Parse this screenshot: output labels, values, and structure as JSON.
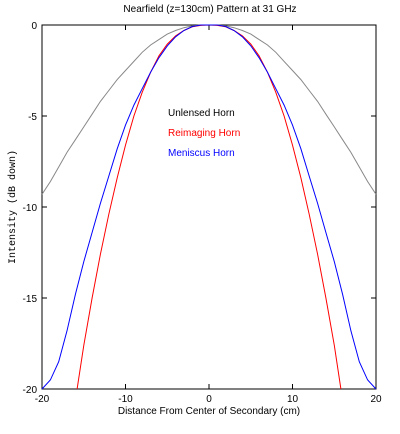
{
  "chart_data": {
    "type": "line",
    "title": "Nearfield (z=130cm) Pattern at 31 GHz",
    "xlabel": "Distance From Center of Secondary (cm)",
    "ylabel": "Intensity (dB down)",
    "xlim": [
      -20,
      20
    ],
    "ylim": [
      -20,
      0
    ],
    "x_ticks": [
      -20,
      -10,
      0,
      10,
      20
    ],
    "y_ticks": [
      0,
      -5,
      -10,
      -15,
      -20
    ],
    "grid": false,
    "legend_position": "center",
    "series": [
      {
        "name": "Unlensed Horn",
        "color": "#888888",
        "points": [
          [
            -20,
            -9.3
          ],
          [
            -19,
            -8.6
          ],
          [
            -18,
            -7.8
          ],
          [
            -17,
            -7.0
          ],
          [
            -16,
            -6.3
          ],
          [
            -15,
            -5.6
          ],
          [
            -14,
            -4.9
          ],
          [
            -13,
            -4.2
          ],
          [
            -12,
            -3.6
          ],
          [
            -11,
            -3.0
          ],
          [
            -10,
            -2.5
          ],
          [
            -9,
            -2.0
          ],
          [
            -8,
            -1.5
          ],
          [
            -7,
            -1.1
          ],
          [
            -6,
            -0.8
          ],
          [
            -5,
            -0.5
          ],
          [
            -4,
            -0.3
          ],
          [
            -3,
            -0.15
          ],
          [
            -2,
            -0.05
          ],
          [
            -1,
            0.0
          ],
          [
            0,
            0.0
          ],
          [
            1,
            0.0
          ],
          [
            2,
            -0.05
          ],
          [
            3,
            -0.15
          ],
          [
            4,
            -0.3
          ],
          [
            5,
            -0.5
          ],
          [
            6,
            -0.8
          ],
          [
            7,
            -1.1
          ],
          [
            8,
            -1.5
          ],
          [
            9,
            -2.0
          ],
          [
            10,
            -2.5
          ],
          [
            11,
            -3.0
          ],
          [
            12,
            -3.6
          ],
          [
            13,
            -4.2
          ],
          [
            14,
            -4.9
          ],
          [
            15,
            -5.6
          ],
          [
            16,
            -6.3
          ],
          [
            17,
            -7.0
          ],
          [
            18,
            -7.8
          ],
          [
            19,
            -8.6
          ],
          [
            20,
            -9.3
          ]
        ]
      },
      {
        "name": "Reimaging Horn",
        "color": "#ff0000",
        "points": [
          [
            -15.8,
            -20
          ],
          [
            -15,
            -17.6
          ],
          [
            -14,
            -15.0
          ],
          [
            -13,
            -12.6
          ],
          [
            -12,
            -10.4
          ],
          [
            -11,
            -8.4
          ],
          [
            -10,
            -6.6
          ],
          [
            -9,
            -5.0
          ],
          [
            -8,
            -3.7
          ],
          [
            -7,
            -2.6
          ],
          [
            -6,
            -1.7
          ],
          [
            -5,
            -1.05
          ],
          [
            -4,
            -0.6
          ],
          [
            -3,
            -0.3
          ],
          [
            -2,
            -0.1
          ],
          [
            -1,
            -0.02
          ],
          [
            0,
            0.0
          ],
          [
            1,
            -0.02
          ],
          [
            2,
            -0.1
          ],
          [
            3,
            -0.3
          ],
          [
            4,
            -0.6
          ],
          [
            5,
            -1.05
          ],
          [
            6,
            -1.7
          ],
          [
            7,
            -2.6
          ],
          [
            8,
            -3.7
          ],
          [
            9,
            -5.0
          ],
          [
            10,
            -6.6
          ],
          [
            11,
            -8.4
          ],
          [
            12,
            -10.4
          ],
          [
            13,
            -12.6
          ],
          [
            14,
            -15.0
          ],
          [
            15,
            -17.6
          ],
          [
            15.8,
            -20
          ]
        ]
      },
      {
        "name": "Meniscus Horn",
        "color": "#0000ff",
        "points": [
          [
            -20,
            -20
          ],
          [
            -19,
            -19.5
          ],
          [
            -18,
            -18.5
          ],
          [
            -17,
            -16.8
          ],
          [
            -16,
            -14.8
          ],
          [
            -15,
            -13.0
          ],
          [
            -14,
            -11.4
          ],
          [
            -13,
            -9.8
          ],
          [
            -12,
            -8.3
          ],
          [
            -11,
            -6.8
          ],
          [
            -10,
            -5.5
          ],
          [
            -9,
            -4.4
          ],
          [
            -8,
            -3.5
          ],
          [
            -7,
            -2.6
          ],
          [
            -6,
            -1.8
          ],
          [
            -5,
            -1.15
          ],
          [
            -4,
            -0.65
          ],
          [
            -3,
            -0.3
          ],
          [
            -2,
            -0.08
          ],
          [
            -1,
            0.0
          ],
          [
            0,
            0.0
          ],
          [
            1,
            0.0
          ],
          [
            2,
            -0.08
          ],
          [
            3,
            -0.3
          ],
          [
            4,
            -0.65
          ],
          [
            5,
            -1.15
          ],
          [
            6,
            -1.8
          ],
          [
            7,
            -2.6
          ],
          [
            8,
            -3.5
          ],
          [
            9,
            -4.4
          ],
          [
            10,
            -5.5
          ],
          [
            11,
            -6.8
          ],
          [
            12,
            -8.3
          ],
          [
            13,
            -9.8
          ],
          [
            14,
            -11.4
          ],
          [
            15,
            -13.0
          ],
          [
            16,
            -14.8
          ],
          [
            17,
            -16.8
          ],
          [
            18,
            -18.5
          ],
          [
            19,
            -19.5
          ],
          [
            20,
            -20
          ]
        ]
      }
    ]
  }
}
